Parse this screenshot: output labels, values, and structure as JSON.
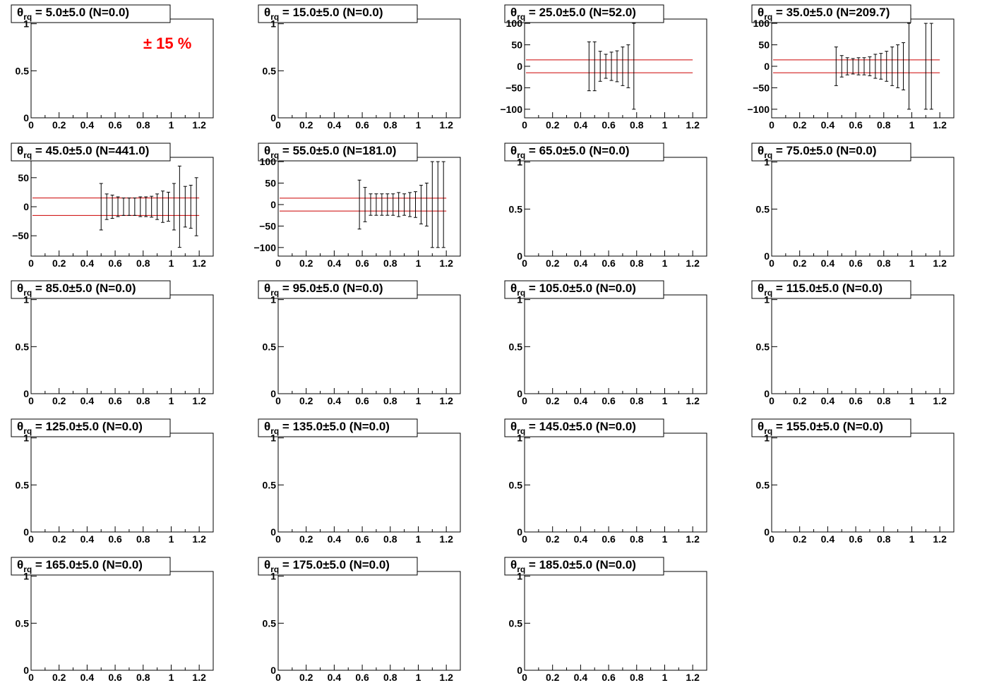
{
  "annotation": {
    "text": "± 15 %",
    "color": "#ff0000"
  },
  "colors": {
    "band": "#cc0000",
    "axis": "#000000",
    "errorbar": "#000000"
  },
  "chart_data": [
    {
      "type": "scatter",
      "title_symbol": "θ",
      "title_sub": "rq",
      "title": " = 5.0±5.0 (N=0.0)",
      "xlim": [
        0,
        1.3
      ],
      "ylim": [
        0,
        1.05
      ],
      "xticks": [
        "0",
        "0.2",
        "0.4",
        "0.6",
        "0.8",
        "1",
        "1.2"
      ],
      "xtick_values": [
        0,
        0.2,
        0.4,
        0.6,
        0.8,
        1,
        1.2
      ],
      "yticks": [
        "0",
        "0.5",
        "1"
      ],
      "ytick_values": [
        0,
        0.5,
        1
      ],
      "band": [],
      "points": []
    },
    {
      "type": "scatter",
      "title_symbol": "θ",
      "title_sub": "rq",
      "title": " = 15.0±5.0 (N=0.0)",
      "xlim": [
        0,
        1.3
      ],
      "ylim": [
        0,
        1.05
      ],
      "xticks": [
        "0",
        "0.2",
        "0.4",
        "0.6",
        "0.8",
        "1",
        "1.2"
      ],
      "xtick_values": [
        0,
        0.2,
        0.4,
        0.6,
        0.8,
        1,
        1.2
      ],
      "yticks": [
        "0",
        "0.5",
        "1"
      ],
      "ytick_values": [
        0,
        0.5,
        1
      ],
      "band": [],
      "points": []
    },
    {
      "type": "scatter",
      "title_symbol": "θ",
      "title_sub": "rq",
      "title": " = 25.0±5.0 (N=52.0)",
      "xlim": [
        0,
        1.3
      ],
      "ylim": [
        -120,
        110
      ],
      "xticks": [
        "0",
        "0.2",
        "0.4",
        "0.6",
        "0.8",
        "1",
        "1.2"
      ],
      "xtick_values": [
        0,
        0.2,
        0.4,
        0.6,
        0.8,
        1,
        1.2
      ],
      "yticks": [
        "100",
        "50",
        "0",
        "−50",
        "−100"
      ],
      "ytick_values": [
        100,
        50,
        0,
        -50,
        -100
      ],
      "band": [
        -15,
        15
      ],
      "points": [
        {
          "x": 0.46,
          "lo": -57,
          "hi": 57
        },
        {
          "x": 0.5,
          "lo": -57,
          "hi": 57
        },
        {
          "x": 0.54,
          "lo": -35,
          "hi": 35
        },
        {
          "x": 0.58,
          "lo": -28,
          "hi": 28
        },
        {
          "x": 0.62,
          "lo": -33,
          "hi": 33
        },
        {
          "x": 0.66,
          "lo": -36,
          "hi": 36
        },
        {
          "x": 0.7,
          "lo": -45,
          "hi": 45
        },
        {
          "x": 0.74,
          "lo": -50,
          "hi": 50
        },
        {
          "x": 0.78,
          "lo": -100,
          "hi": 100
        }
      ]
    },
    {
      "type": "scatter",
      "title_symbol": "θ",
      "title_sub": "rq",
      "title": " = 35.0±5.0 (N=209.7)",
      "xlim": [
        0,
        1.3
      ],
      "ylim": [
        -120,
        110
      ],
      "xticks": [
        "0",
        "0.2",
        "0.4",
        "0.6",
        "0.8",
        "1",
        "1.2"
      ],
      "xtick_values": [
        0,
        0.2,
        0.4,
        0.6,
        0.8,
        1,
        1.2
      ],
      "yticks": [
        "100",
        "50",
        "0",
        "−50",
        "−100"
      ],
      "ytick_values": [
        100,
        50,
        0,
        -50,
        -100
      ],
      "band": [
        -15,
        15
      ],
      "points": [
        {
          "x": 0.46,
          "lo": -45,
          "hi": 45
        },
        {
          "x": 0.5,
          "lo": -25,
          "hi": 25
        },
        {
          "x": 0.54,
          "lo": -20,
          "hi": 20
        },
        {
          "x": 0.58,
          "lo": -18,
          "hi": 18
        },
        {
          "x": 0.62,
          "lo": -20,
          "hi": 20
        },
        {
          "x": 0.66,
          "lo": -20,
          "hi": 20
        },
        {
          "x": 0.7,
          "lo": -22,
          "hi": 22
        },
        {
          "x": 0.74,
          "lo": -28,
          "hi": 28
        },
        {
          "x": 0.78,
          "lo": -30,
          "hi": 30
        },
        {
          "x": 0.82,
          "lo": -35,
          "hi": 35
        },
        {
          "x": 0.86,
          "lo": -45,
          "hi": 45
        },
        {
          "x": 0.9,
          "lo": -50,
          "hi": 50
        },
        {
          "x": 0.94,
          "lo": -55,
          "hi": 55
        },
        {
          "x": 0.98,
          "lo": -100,
          "hi": 100
        },
        {
          "x": 1.1,
          "lo": -100,
          "hi": 100
        },
        {
          "x": 1.14,
          "lo": -100,
          "hi": 100
        }
      ]
    },
    {
      "type": "scatter",
      "title_symbol": "θ",
      "title_sub": "rq",
      "title": " = 45.0±5.0 (N=441.0)",
      "xlim": [
        0,
        1.3
      ],
      "ylim": [
        -85,
        85
      ],
      "xticks": [
        "0",
        "0.2",
        "0.4",
        "0.6",
        "0.8",
        "1",
        "1.2"
      ],
      "xtick_values": [
        0,
        0.2,
        0.4,
        0.6,
        0.8,
        1,
        1.2
      ],
      "yticks": [
        "50",
        "0",
        "−50"
      ],
      "ytick_values": [
        50,
        0,
        -50
      ],
      "band": [
        -15,
        15
      ],
      "points": [
        {
          "x": 0.5,
          "lo": -40,
          "hi": 40
        },
        {
          "x": 0.54,
          "lo": -22,
          "hi": 22
        },
        {
          "x": 0.58,
          "lo": -20,
          "hi": 20
        },
        {
          "x": 0.62,
          "lo": -17,
          "hi": 17
        },
        {
          "x": 0.66,
          "lo": -15,
          "hi": 15
        },
        {
          "x": 0.7,
          "lo": -15,
          "hi": 15
        },
        {
          "x": 0.74,
          "lo": -15,
          "hi": 15
        },
        {
          "x": 0.78,
          "lo": -17,
          "hi": 17
        },
        {
          "x": 0.82,
          "lo": -17,
          "hi": 17
        },
        {
          "x": 0.86,
          "lo": -18,
          "hi": 18
        },
        {
          "x": 0.9,
          "lo": -22,
          "hi": 22
        },
        {
          "x": 0.94,
          "lo": -27,
          "hi": 27
        },
        {
          "x": 0.98,
          "lo": -25,
          "hi": 25
        },
        {
          "x": 1.02,
          "lo": -40,
          "hi": 40
        },
        {
          "x": 1.06,
          "lo": -70,
          "hi": 70
        },
        {
          "x": 1.1,
          "lo": -35,
          "hi": 35
        },
        {
          "x": 1.14,
          "lo": -37,
          "hi": 37
        },
        {
          "x": 1.18,
          "lo": -50,
          "hi": 50
        }
      ]
    },
    {
      "type": "scatter",
      "title_symbol": "θ",
      "title_sub": "rq",
      "title": " = 55.0±5.0 (N=181.0)",
      "xlim": [
        0,
        1.3
      ],
      "ylim": [
        -120,
        110
      ],
      "xticks": [
        "0",
        "0.2",
        "0.4",
        "0.6",
        "0.8",
        "1",
        "1.2"
      ],
      "xtick_values": [
        0,
        0.2,
        0.4,
        0.6,
        0.8,
        1,
        1.2
      ],
      "yticks": [
        "100",
        "50",
        "0",
        "−50",
        "−100"
      ],
      "ytick_values": [
        100,
        50,
        0,
        -50,
        -100
      ],
      "band": [
        -15,
        15
      ],
      "points": [
        {
          "x": 0.58,
          "lo": -57,
          "hi": 57
        },
        {
          "x": 0.62,
          "lo": -40,
          "hi": 40
        },
        {
          "x": 0.66,
          "lo": -25,
          "hi": 25
        },
        {
          "x": 0.7,
          "lo": -25,
          "hi": 25
        },
        {
          "x": 0.74,
          "lo": -25,
          "hi": 25
        },
        {
          "x": 0.78,
          "lo": -25,
          "hi": 25
        },
        {
          "x": 0.82,
          "lo": -25,
          "hi": 25
        },
        {
          "x": 0.86,
          "lo": -28,
          "hi": 28
        },
        {
          "x": 0.9,
          "lo": -25,
          "hi": 25
        },
        {
          "x": 0.94,
          "lo": -28,
          "hi": 28
        },
        {
          "x": 0.98,
          "lo": -30,
          "hi": 30
        },
        {
          "x": 1.02,
          "lo": -45,
          "hi": 45
        },
        {
          "x": 1.06,
          "lo": -50,
          "hi": 50
        },
        {
          "x": 1.1,
          "lo": -100,
          "hi": 100
        },
        {
          "x": 1.14,
          "lo": -100,
          "hi": 100
        },
        {
          "x": 1.18,
          "lo": -100,
          "hi": 100
        }
      ]
    },
    {
      "type": "scatter",
      "title_symbol": "θ",
      "title_sub": "rq",
      "title": " = 65.0±5.0 (N=0.0)",
      "xlim": [
        0,
        1.3
      ],
      "ylim": [
        0,
        1.05
      ],
      "xticks": [
        "0",
        "0.2",
        "0.4",
        "0.6",
        "0.8",
        "1",
        "1.2"
      ],
      "xtick_values": [
        0,
        0.2,
        0.4,
        0.6,
        0.8,
        1,
        1.2
      ],
      "yticks": [
        "0",
        "0.5",
        "1"
      ],
      "ytick_values": [
        0,
        0.5,
        1
      ],
      "band": [],
      "points": []
    },
    {
      "type": "scatter",
      "title_symbol": "θ",
      "title_sub": "rq",
      "title": " = 75.0±5.0 (N=0.0)",
      "xlim": [
        0,
        1.3
      ],
      "ylim": [
        0,
        1.05
      ],
      "xticks": [
        "0",
        "0.2",
        "0.4",
        "0.6",
        "0.8",
        "1",
        "1.2"
      ],
      "xtick_values": [
        0,
        0.2,
        0.4,
        0.6,
        0.8,
        1,
        1.2
      ],
      "yticks": [
        "0",
        "0.5",
        "1"
      ],
      "ytick_values": [
        0,
        0.5,
        1
      ],
      "band": [],
      "points": []
    },
    {
      "type": "scatter",
      "title_symbol": "θ",
      "title_sub": "rq",
      "title": " = 85.0±5.0 (N=0.0)",
      "xlim": [
        0,
        1.3
      ],
      "ylim": [
        0,
        1.05
      ],
      "xticks": [
        "0",
        "0.2",
        "0.4",
        "0.6",
        "0.8",
        "1",
        "1.2"
      ],
      "xtick_values": [
        0,
        0.2,
        0.4,
        0.6,
        0.8,
        1,
        1.2
      ],
      "yticks": [
        "0",
        "0.5",
        "1"
      ],
      "ytick_values": [
        0,
        0.5,
        1
      ],
      "band": [],
      "points": []
    },
    {
      "type": "scatter",
      "title_symbol": "θ",
      "title_sub": "rq",
      "title": " = 95.0±5.0 (N=0.0)",
      "xlim": [
        0,
        1.3
      ],
      "ylim": [
        0,
        1.05
      ],
      "xticks": [
        "0",
        "0.2",
        "0.4",
        "0.6",
        "0.8",
        "1",
        "1.2"
      ],
      "xtick_values": [
        0,
        0.2,
        0.4,
        0.6,
        0.8,
        1,
        1.2
      ],
      "yticks": [
        "0",
        "0.5",
        "1"
      ],
      "ytick_values": [
        0,
        0.5,
        1
      ],
      "band": [],
      "points": []
    },
    {
      "type": "scatter",
      "title_symbol": "θ",
      "title_sub": "rq",
      "title": " = 105.0±5.0 (N=0.0)",
      "xlim": [
        0,
        1.3
      ],
      "ylim": [
        0,
        1.05
      ],
      "xticks": [
        "0",
        "0.2",
        "0.4",
        "0.6",
        "0.8",
        "1",
        "1.2"
      ],
      "xtick_values": [
        0,
        0.2,
        0.4,
        0.6,
        0.8,
        1,
        1.2
      ],
      "yticks": [
        "0",
        "0.5",
        "1"
      ],
      "ytick_values": [
        0,
        0.5,
        1
      ],
      "band": [],
      "points": []
    },
    {
      "type": "scatter",
      "title_symbol": "θ",
      "title_sub": "rq",
      "title": " = 115.0±5.0 (N=0.0)",
      "xlim": [
        0,
        1.3
      ],
      "ylim": [
        0,
        1.05
      ],
      "xticks": [
        "0",
        "0.2",
        "0.4",
        "0.6",
        "0.8",
        "1",
        "1.2"
      ],
      "xtick_values": [
        0,
        0.2,
        0.4,
        0.6,
        0.8,
        1,
        1.2
      ],
      "yticks": [
        "0",
        "0.5",
        "1"
      ],
      "ytick_values": [
        0,
        0.5,
        1
      ],
      "band": [],
      "points": []
    },
    {
      "type": "scatter",
      "title_symbol": "θ",
      "title_sub": "rq",
      "title": " = 125.0±5.0 (N=0.0)",
      "xlim": [
        0,
        1.3
      ],
      "ylim": [
        0,
        1.05
      ],
      "xticks": [
        "0",
        "0.2",
        "0.4",
        "0.6",
        "0.8",
        "1",
        "1.2"
      ],
      "xtick_values": [
        0,
        0.2,
        0.4,
        0.6,
        0.8,
        1,
        1.2
      ],
      "yticks": [
        "0",
        "0.5",
        "1"
      ],
      "ytick_values": [
        0,
        0.5,
        1
      ],
      "band": [],
      "points": []
    },
    {
      "type": "scatter",
      "title_symbol": "θ",
      "title_sub": "rq",
      "title": " = 135.0±5.0 (N=0.0)",
      "xlim": [
        0,
        1.3
      ],
      "ylim": [
        0,
        1.05
      ],
      "xticks": [
        "0",
        "0.2",
        "0.4",
        "0.6",
        "0.8",
        "1",
        "1.2"
      ],
      "xtick_values": [
        0,
        0.2,
        0.4,
        0.6,
        0.8,
        1,
        1.2
      ],
      "yticks": [
        "0",
        "0.5",
        "1"
      ],
      "ytick_values": [
        0,
        0.5,
        1
      ],
      "band": [],
      "points": []
    },
    {
      "type": "scatter",
      "title_symbol": "θ",
      "title_sub": "rq",
      "title": " = 145.0±5.0 (N=0.0)",
      "xlim": [
        0,
        1.3
      ],
      "ylim": [
        0,
        1.05
      ],
      "xticks": [
        "0",
        "0.2",
        "0.4",
        "0.6",
        "0.8",
        "1",
        "1.2"
      ],
      "xtick_values": [
        0,
        0.2,
        0.4,
        0.6,
        0.8,
        1,
        1.2
      ],
      "yticks": [
        "0",
        "0.5",
        "1"
      ],
      "ytick_values": [
        0,
        0.5,
        1
      ],
      "band": [],
      "points": []
    },
    {
      "type": "scatter",
      "title_symbol": "θ",
      "title_sub": "rq",
      "title": " = 155.0±5.0 (N=0.0)",
      "xlim": [
        0,
        1.3
      ],
      "ylim": [
        0,
        1.05
      ],
      "xticks": [
        "0",
        "0.2",
        "0.4",
        "0.6",
        "0.8",
        "1",
        "1.2"
      ],
      "xtick_values": [
        0,
        0.2,
        0.4,
        0.6,
        0.8,
        1,
        1.2
      ],
      "yticks": [
        "0",
        "0.5",
        "1"
      ],
      "ytick_values": [
        0,
        0.5,
        1
      ],
      "band": [],
      "points": []
    },
    {
      "type": "scatter",
      "title_symbol": "θ",
      "title_sub": "rq",
      "title": " = 165.0±5.0 (N=0.0)",
      "xlim": [
        0,
        1.3
      ],
      "ylim": [
        0,
        1.05
      ],
      "xticks": [
        "0",
        "0.2",
        "0.4",
        "0.6",
        "0.8",
        "1",
        "1.2"
      ],
      "xtick_values": [
        0,
        0.2,
        0.4,
        0.6,
        0.8,
        1,
        1.2
      ],
      "yticks": [
        "0",
        "0.5",
        "1"
      ],
      "ytick_values": [
        0,
        0.5,
        1
      ],
      "band": [],
      "points": []
    },
    {
      "type": "scatter",
      "title_symbol": "θ",
      "title_sub": "rq",
      "title": " = 175.0±5.0 (N=0.0)",
      "xlim": [
        0,
        1.3
      ],
      "ylim": [
        0,
        1.05
      ],
      "xticks": [
        "0",
        "0.2",
        "0.4",
        "0.6",
        "0.8",
        "1",
        "1.2"
      ],
      "xtick_values": [
        0,
        0.2,
        0.4,
        0.6,
        0.8,
        1,
        1.2
      ],
      "yticks": [
        "0",
        "0.5",
        "1"
      ],
      "ytick_values": [
        0,
        0.5,
        1
      ],
      "band": [],
      "points": []
    },
    {
      "type": "scatter",
      "title_symbol": "θ",
      "title_sub": "rq",
      "title": " = 185.0±5.0 (N=0.0)",
      "xlim": [
        0,
        1.3
      ],
      "ylim": [
        0,
        1.05
      ],
      "xticks": [
        "0",
        "0.2",
        "0.4",
        "0.6",
        "0.8",
        "1",
        "1.2"
      ],
      "xtick_values": [
        0,
        0.2,
        0.4,
        0.6,
        0.8,
        1,
        1.2
      ],
      "yticks": [
        "0",
        "0.5",
        "1"
      ],
      "ytick_values": [
        0,
        0.5,
        1
      ],
      "band": [],
      "points": []
    }
  ]
}
